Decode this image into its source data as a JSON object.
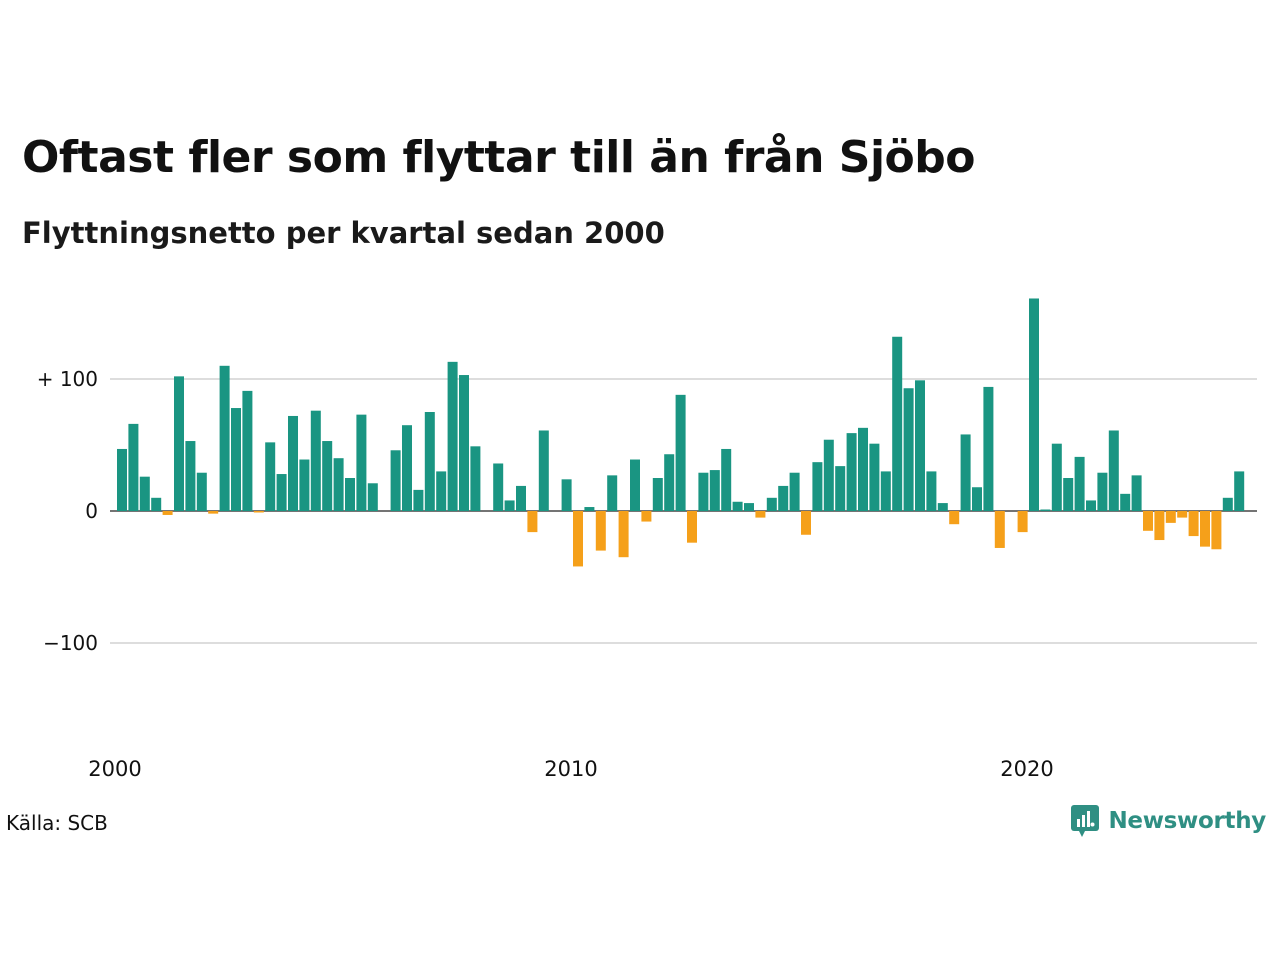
{
  "title": "Oftast fler som flyttar till än från Sjöbo",
  "subtitle": "Flyttningsnetto per kvartal sedan 2000",
  "source": "Källa: SCB",
  "brand": "Newsworthy",
  "colors": {
    "positive": "#1a9582",
    "negative": "#f5a01a",
    "grid": "#dddddd",
    "brand": "#2f8f83"
  },
  "chart_data": {
    "type": "bar",
    "x_start": "2000 Q1",
    "x_step": "quarter",
    "xticks": [
      "2000",
      "2010",
      "2020"
    ],
    "yticks": [
      {
        "value": 100,
        "label": "+ 100"
      },
      {
        "value": 0,
        "label": "0"
      },
      {
        "value": -100,
        "label": "−100"
      }
    ],
    "ylim": [
      -170,
      165
    ],
    "grid": "horizontal",
    "legend": "none",
    "values": [
      47,
      66,
      26,
      10,
      -3,
      102,
      53,
      29,
      -2,
      110,
      78,
      91,
      -1,
      52,
      28,
      72,
      39,
      76,
      53,
      40,
      25,
      73,
      21,
      0,
      46,
      65,
      16,
      75,
      30,
      113,
      103,
      49,
      0,
      36,
      8,
      19,
      -16,
      61,
      0,
      24,
      -42,
      3,
      -30,
      27,
      -35,
      39,
      -8,
      25,
      43,
      88,
      -24,
      29,
      31,
      47,
      7,
      6,
      -5,
      10,
      19,
      29,
      -18,
      37,
      54,
      34,
      59,
      63,
      51,
      30,
      132,
      93,
      99,
      30,
      6,
      -10,
      58,
      18,
      94,
      -28,
      0,
      -16,
      161,
      1,
      51,
      25,
      41,
      8,
      29,
      61,
      13,
      27,
      -15,
      -22,
      -9,
      -5,
      -19,
      -27,
      -29,
      10,
      30
    ]
  }
}
